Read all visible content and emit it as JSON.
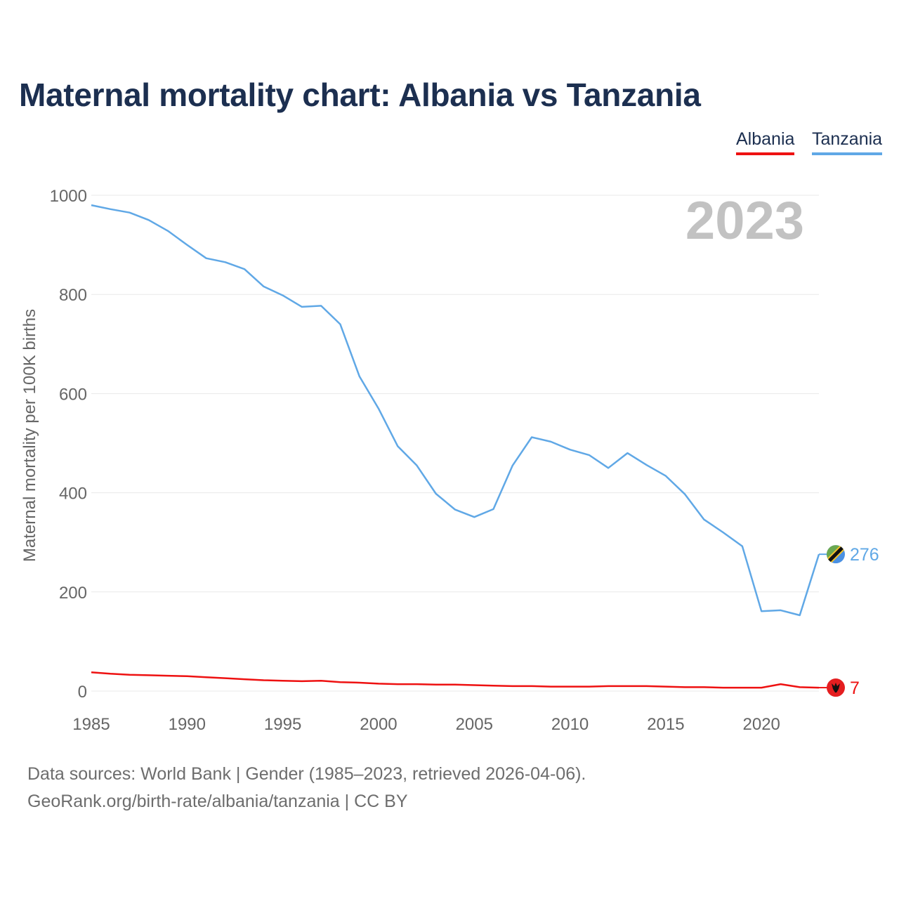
{
  "chart_data": {
    "type": "line",
    "title": "Maternal mortality chart: Albania vs Tanzania",
    "ylabel": "Maternal mortality per 100K births",
    "xlabel": "",
    "year_label": "2023",
    "ylim": [
      0,
      1000
    ],
    "xlim": [
      1985,
      2023
    ],
    "y_ticks": [
      0,
      200,
      400,
      600,
      800,
      1000
    ],
    "x_ticks": [
      1985,
      1990,
      1995,
      2000,
      2005,
      2010,
      2015,
      2020
    ],
    "grid": true,
    "legend_position": "top-right",
    "x": [
      1985,
      1986,
      1987,
      1988,
      1989,
      1990,
      1991,
      1992,
      1993,
      1994,
      1995,
      1996,
      1997,
      1998,
      1999,
      2000,
      2001,
      2002,
      2003,
      2004,
      2005,
      2006,
      2007,
      2008,
      2009,
      2010,
      2011,
      2012,
      2013,
      2014,
      2015,
      2016,
      2017,
      2018,
      2019,
      2020,
      2021,
      2022,
      2023
    ],
    "series": [
      {
        "name": "Albania",
        "color": "#ee1111",
        "end_label": "7",
        "values": [
          38,
          35,
          33,
          32,
          31,
          30,
          28,
          26,
          24,
          22,
          21,
          20,
          21,
          18,
          17,
          15,
          14,
          14,
          13,
          13,
          12,
          11,
          10,
          10,
          9,
          9,
          9,
          10,
          10,
          10,
          9,
          8,
          8,
          7,
          7,
          7,
          14,
          8,
          7
        ]
      },
      {
        "name": "Tanzania",
        "color": "#60a8e6",
        "end_label": "276",
        "values": [
          980,
          972,
          965,
          950,
          928,
          900,
          873,
          865,
          851,
          816,
          798,
          775,
          777,
          740,
          635,
          570,
          494,
          455,
          398,
          366,
          351,
          367,
          455,
          512,
          503,
          487,
          476,
          450,
          480,
          456,
          434,
          397,
          346,
          320,
          292,
          161,
          163,
          153,
          276
        ]
      }
    ]
  },
  "footer": {
    "source": "Data sources: World Bank | Gender (1985–2023, retrieved 2026-04-06).",
    "credit": "GeoRank.org/birth-rate/albania/tanzania | CC BY"
  }
}
